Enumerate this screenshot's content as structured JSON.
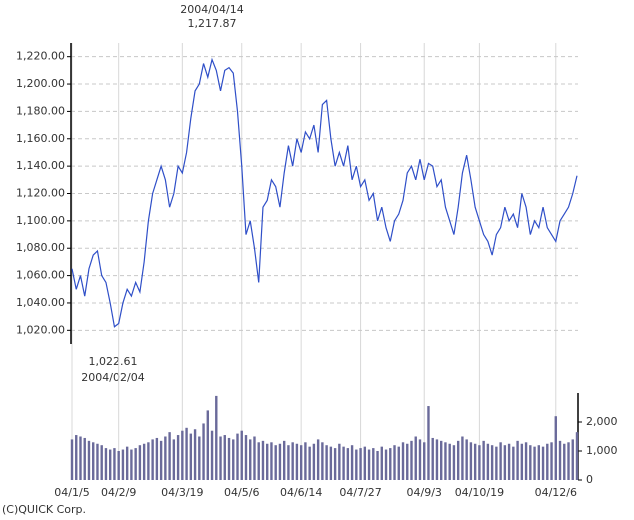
{
  "chart_data": {
    "type": "line",
    "annotations": [
      "2004/04/14",
      "1,217.87",
      "1,022.61",
      "2004/02/04"
    ],
    "categories": [
      "04/1/5",
      null,
      null,
      null,
      null,
      null,
      null,
      null,
      null,
      null,
      null,
      "04/2/9",
      null,
      null,
      null,
      null,
      null,
      null,
      null,
      null,
      null,
      null,
      null,
      null,
      null,
      null,
      "04/3/19",
      null,
      null,
      null,
      null,
      null,
      null,
      null,
      null,
      null,
      null,
      null,
      null,
      null,
      "04/5/6",
      null,
      null,
      null,
      null,
      null,
      null,
      null,
      null,
      null,
      null,
      null,
      null,
      null,
      "04/6/14",
      null,
      null,
      null,
      null,
      null,
      null,
      null,
      null,
      null,
      null,
      null,
      null,
      null,
      "04/7/27",
      null,
      null,
      null,
      null,
      null,
      null,
      null,
      null,
      null,
      null,
      null,
      null,
      null,
      null,
      "04/9/3",
      null,
      null,
      null,
      null,
      null,
      null,
      null,
      null,
      null,
      null,
      null,
      null,
      "04/10/19",
      null,
      null,
      null,
      null,
      null,
      null,
      null,
      null,
      null,
      null,
      null,
      null,
      null,
      null,
      null,
      null,
      null,
      "04/12/6",
      null,
      null,
      null,
      null,
      null
    ],
    "series": [
      {
        "type": "line",
        "color": "#2f4fc8",
        "values": [
          1065,
          1050,
          1060,
          1045,
          1065,
          1075,
          1078,
          1060,
          1055,
          1040,
          1022.61,
          1025,
          1040,
          1050,
          1045,
          1055,
          1048,
          1070,
          1100,
          1120,
          1130,
          1140,
          1130,
          1110,
          1120,
          1140,
          1135,
          1150,
          1175,
          1195,
          1200,
          1215,
          1205,
          1217.87,
          1210,
          1195,
          1210,
          1212,
          1208,
          1180,
          1140,
          1090,
          1100,
          1080,
          1055,
          1110,
          1115,
          1130,
          1125,
          1110,
          1135,
          1155,
          1140,
          1160,
          1150,
          1165,
          1160,
          1170,
          1150,
          1185,
          1188,
          1160,
          1140,
          1150,
          1140,
          1155,
          1130,
          1140,
          1125,
          1130,
          1115,
          1120,
          1100,
          1110,
          1095,
          1085,
          1100,
          1105,
          1115,
          1135,
          1140,
          1130,
          1145,
          1130,
          1142,
          1140,
          1125,
          1130,
          1110,
          1100,
          1090,
          1110,
          1135,
          1148,
          1130,
          1110,
          1100,
          1090,
          1085,
          1075,
          1090,
          1095,
          1110,
          1100,
          1105,
          1095,
          1120,
          1110,
          1090,
          1100,
          1095,
          1110,
          1095,
          1090,
          1085,
          1100,
          1105,
          1110,
          1120,
          1133
        ]
      },
      {
        "type": "bar",
        "axis": "y2",
        "color": "#6a6a9a",
        "values": [
          1400,
          1550,
          1500,
          1450,
          1350,
          1300,
          1250,
          1200,
          1100,
          1050,
          1100,
          1000,
          1050,
          1150,
          1050,
          1100,
          1200,
          1250,
          1300,
          1400,
          1450,
          1350,
          1500,
          1650,
          1400,
          1550,
          1700,
          1800,
          1600,
          1750,
          1500,
          1950,
          2400,
          1700,
          2900,
          1500,
          1550,
          1450,
          1400,
          1600,
          1700,
          1550,
          1400,
          1500,
          1300,
          1350,
          1250,
          1300,
          1200,
          1250,
          1350,
          1200,
          1300,
          1250,
          1200,
          1300,
          1150,
          1250,
          1400,
          1300,
          1200,
          1150,
          1100,
          1250,
          1150,
          1100,
          1200,
          1050,
          1100,
          1150,
          1050,
          1100,
          1000,
          1150,
          1050,
          1100,
          1200,
          1150,
          1300,
          1250,
          1350,
          1500,
          1400,
          1300,
          2550,
          1450,
          1400,
          1350,
          1300,
          1250,
          1200,
          1350,
          1500,
          1400,
          1300,
          1250,
          1200,
          1350,
          1250,
          1200,
          1150,
          1300,
          1200,
          1250,
          1150,
          1350,
          1250,
          1300,
          1200,
          1150,
          1200,
          1150,
          1250,
          1300,
          2200,
          1350,
          1250,
          1300,
          1400,
          1650
        ]
      }
    ],
    "ylim": [
      1010,
      1230
    ],
    "yticks": [
      {
        "value": 1020,
        "label": "1,020.00"
      },
      {
        "value": 1040,
        "label": "1,040.00"
      },
      {
        "value": 1060,
        "label": "1,060.00"
      },
      {
        "value": 1080,
        "label": "1,080.00"
      },
      {
        "value": 1100,
        "label": "1,100.00"
      },
      {
        "value": 1120,
        "label": "1,120.00"
      },
      {
        "value": 1140,
        "label": "1,140.00"
      },
      {
        "value": 1160,
        "label": "1,160.00"
      },
      {
        "value": 1180,
        "label": "1,180.00"
      },
      {
        "value": 1200,
        "label": "1,200.00"
      },
      {
        "value": 1220,
        "label": "1,220.00"
      }
    ],
    "y2lim": [
      0,
      3000
    ],
    "y2ticks": [
      0,
      {
        "value": 1000,
        "label": "1,000"
      },
      {
        "value": 2000,
        "label": "2,000"
      }
    ],
    "grid": true
  },
  "footer": "(C)QUICK Corp."
}
